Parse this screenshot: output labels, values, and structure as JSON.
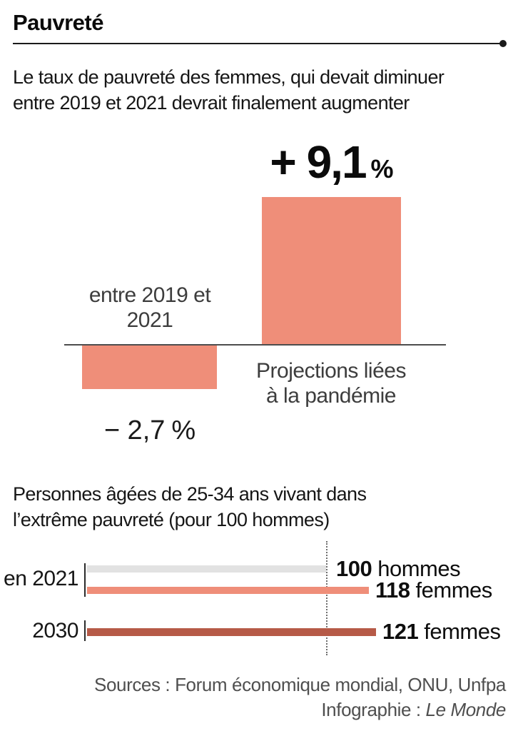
{
  "header": {
    "kicker": "Pauvreté"
  },
  "intro": {
    "line1": "Le taux de pauvreté des femmes, qui devait diminuer",
    "line2": "entre 2019 et 2021 devrait finalement augmenter"
  },
  "colors": {
    "salmon": "#ef8e79",
    "brick": "#b65a47",
    "gray_bar": "#e2e2e2",
    "axis": "#4d4d4d"
  },
  "chart_data": [
    {
      "type": "bar",
      "title": "Le taux de pauvreté des femmes, qui devait diminuer entre 2019 et 2021 devrait finalement augmenter",
      "categories": [
        "entre 2019 et 2021",
        "Projections liées à la pandémie"
      ],
      "values": [
        -2.7,
        9.1
      ],
      "unit": "%",
      "baseline": 0,
      "bar_color": "#ef8e79",
      "data_labels": [
        {
          "value": "− 2,7",
          "unit": "%"
        },
        {
          "value": "+ 9,1",
          "unit": "%"
        }
      ]
    },
    {
      "type": "bar",
      "orientation": "horizontal",
      "title": "Personnes âgées de 25-34 ans vivant dans l’extrême pauvreté (pour 100 hommes)",
      "reference_line": 100,
      "groups": [
        "en 2021",
        "2030"
      ],
      "rows": [
        {
          "group": "en 2021",
          "value": 100,
          "label_value": "100",
          "label_word": "hommes",
          "color": "#e2e2e2"
        },
        {
          "group": "en 2021",
          "value": 118,
          "label_value": "118",
          "label_word": "femmes",
          "color": "#ef8e79"
        },
        {
          "group": "2030",
          "value": 121,
          "label_value": "121",
          "label_word": "femmes",
          "color": "#b65a47"
        }
      ]
    }
  ],
  "section2": {
    "title_line1": "Personnes âgées de 25-34 ans vivant dans",
    "title_line2": "l’extrême pauvreté (pour 100 hommes)"
  },
  "footer": {
    "sources": "Sources : Forum économique mondial, ONU, Unfpa",
    "credit_prefix": "Infographie : ",
    "credit_name": "Le Monde"
  }
}
